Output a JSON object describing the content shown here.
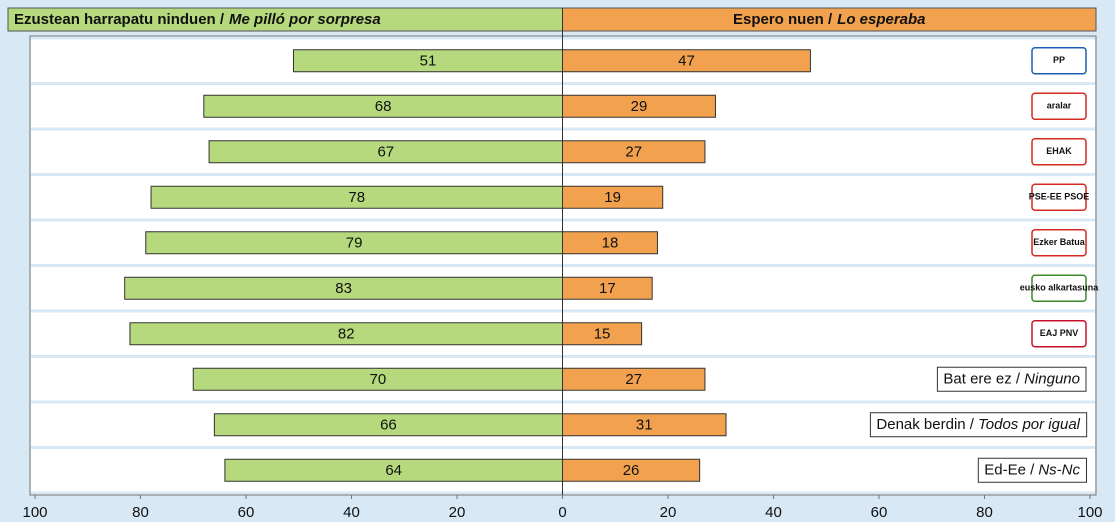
{
  "chart_data": {
    "type": "diverging-bar",
    "series": [
      {
        "name": "Ezustean harrapatu ninduen /",
        "name_italic": "Me pilló por sorpresa",
        "color": "#b5d97c",
        "side": "left",
        "values": [
          51,
          68,
          67,
          78,
          79,
          83,
          82,
          70,
          66,
          64
        ]
      },
      {
        "name": "Espero nuen /",
        "name_italic": "Lo esperaba",
        "color": "#f2a24e",
        "side": "right",
        "values": [
          47,
          29,
          27,
          19,
          18,
          17,
          15,
          27,
          31,
          26
        ]
      }
    ],
    "categories": [
      {
        "logo": "PP",
        "color": "#1d5fb4"
      },
      {
        "logo": "aralar",
        "color": "#d42a20"
      },
      {
        "logo": "EHAK",
        "color": "#d42a20"
      },
      {
        "logo": "PSE-EE PSOE",
        "color": "#d42a20"
      },
      {
        "logo": "Ezker Batua",
        "color": "#d42a20"
      },
      {
        "logo": "eusko alkartasuna",
        "color": "#3a8a2a"
      },
      {
        "logo": "EAJ PNV",
        "color": "#c8102e"
      },
      {
        "text": "Bat ere ez /",
        "italic": "Ninguno"
      },
      {
        "text": "Denak berdin /",
        "italic": "Todos por igual"
      },
      {
        "text": "Ed-Ee /",
        "italic": "Ns-Nc"
      }
    ],
    "xlim": [
      -100,
      100
    ],
    "xticks": [
      {
        "value": -100,
        "label": "100"
      },
      {
        "value": -80,
        "label": "80"
      },
      {
        "value": -60,
        "label": "60"
      },
      {
        "value": -40,
        "label": "40"
      },
      {
        "value": -20,
        "label": "20"
      },
      0,
      20,
      40,
      60,
      80,
      100
    ],
    "grid": false
  }
}
